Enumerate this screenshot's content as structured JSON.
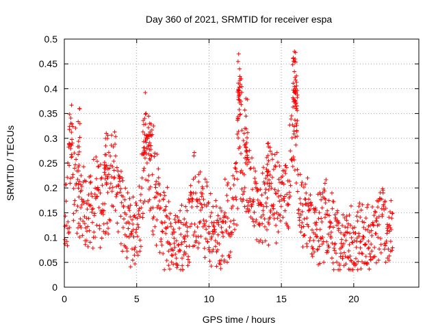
{
  "chart_data": {
    "type": "scatter",
    "title": "Day 360 of 2021, SRMTID for receiver espa",
    "xlabel": "GPS time / hours",
    "ylabel": "SRMTID / TECUs",
    "xlim": [
      0,
      24.5
    ],
    "ylim": [
      0,
      0.5
    ],
    "xticks": [
      0,
      5,
      10,
      15,
      20
    ],
    "xtick_labels": [
      "0",
      "5",
      "10",
      "15",
      "20"
    ],
    "yticks": [
      0,
      0.05,
      0.1,
      0.15,
      0.2,
      0.25,
      0.3,
      0.35,
      0.4,
      0.45,
      0.5
    ],
    "ytick_labels": [
      "0",
      "0.05",
      "0.1",
      "0.15",
      "0.2",
      "0.25",
      "0.3",
      "0.35",
      "0.4",
      "0.45",
      "0.5"
    ],
    "grid": true,
    "marker": "+",
    "color": "#ff0000",
    "x_range_of_data": [
      0,
      22.7
    ],
    "series": [
      {
        "name": "SRMTID",
        "envelope": [
          [
            0.0,
            0.12
          ],
          [
            0.3,
            0.2
          ],
          [
            0.5,
            0.28
          ],
          [
            0.8,
            0.22
          ],
          [
            1.0,
            0.18
          ],
          [
            1.5,
            0.15
          ],
          [
            2.0,
            0.17
          ],
          [
            2.5,
            0.18
          ],
          [
            3.0,
            0.19
          ],
          [
            3.5,
            0.24
          ],
          [
            3.9,
            0.15
          ],
          [
            4.3,
            0.12
          ],
          [
            4.8,
            0.1
          ],
          [
            5.2,
            0.13
          ],
          [
            5.6,
            0.27
          ],
          [
            6.0,
            0.24
          ],
          [
            6.5,
            0.15
          ],
          [
            7.0,
            0.12
          ],
          [
            7.5,
            0.09
          ],
          [
            8.0,
            0.1
          ],
          [
            8.5,
            0.1
          ],
          [
            9.0,
            0.18
          ],
          [
            9.5,
            0.15
          ],
          [
            10.0,
            0.13
          ],
          [
            10.5,
            0.11
          ],
          [
            11.0,
            0.12
          ],
          [
            11.5,
            0.14
          ],
          [
            11.9,
            0.2
          ],
          [
            12.1,
            0.36
          ],
          [
            12.3,
            0.27
          ],
          [
            12.7,
            0.2
          ],
          [
            13.0,
            0.17
          ],
          [
            13.5,
            0.13
          ],
          [
            14.0,
            0.17
          ],
          [
            14.5,
            0.23
          ],
          [
            15.0,
            0.16
          ],
          [
            15.5,
            0.2
          ],
          [
            15.9,
            0.33
          ],
          [
            16.2,
            0.2
          ],
          [
            16.5,
            0.15
          ],
          [
            17.0,
            0.12
          ],
          [
            17.5,
            0.12
          ],
          [
            18.0,
            0.15
          ],
          [
            18.5,
            0.12
          ],
          [
            19.0,
            0.08
          ],
          [
            19.5,
            0.09
          ],
          [
            20.0,
            0.09
          ],
          [
            20.5,
            0.1
          ],
          [
            21.0,
            0.09
          ],
          [
            21.5,
            0.1
          ],
          [
            22.0,
            0.14
          ],
          [
            22.4,
            0.12
          ],
          [
            22.7,
            0.1
          ]
        ],
        "spikes": [
          [
            0.45,
            0.33
          ],
          [
            1.05,
            0.36
          ],
          [
            2.9,
            0.31
          ],
          [
            5.55,
            0.34
          ],
          [
            5.9,
            0.33
          ],
          [
            12.05,
            0.47
          ],
          [
            12.15,
            0.42
          ],
          [
            12.55,
            0.38
          ],
          [
            14.1,
            0.29
          ],
          [
            15.9,
            0.475
          ],
          [
            15.95,
            0.46
          ],
          [
            16.0,
            0.4
          ]
        ]
      }
    ]
  }
}
